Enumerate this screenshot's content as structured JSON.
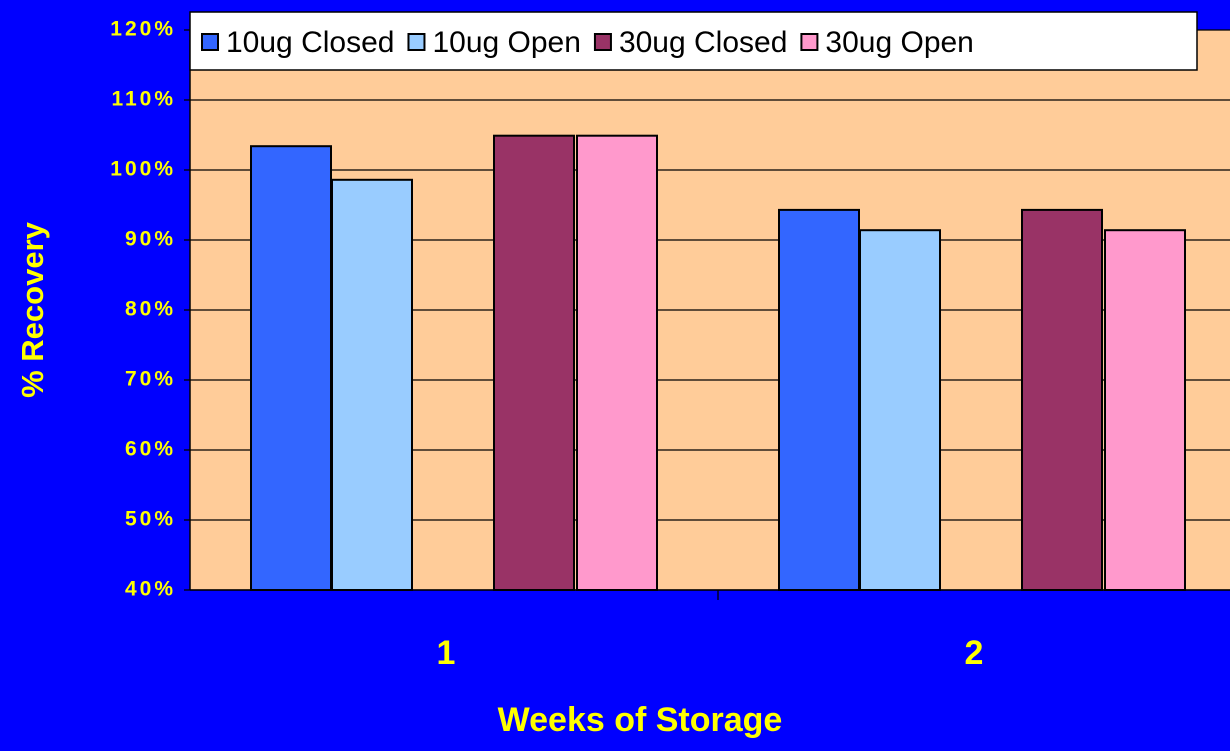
{
  "chart_data": {
    "type": "bar",
    "x_label": "Weeks of Storage",
    "y_label": "% Recovery",
    "categories": [
      "1",
      "2"
    ],
    "series": [
      {
        "name": "10ug Closed",
        "color": "#3366ff",
        "values": [
          103.4,
          94.3
        ]
      },
      {
        "name": "10ug Open",
        "color": "#99ccff",
        "values": [
          98.6,
          91.4
        ]
      },
      {
        "name": "30ug Closed",
        "color": "#993366",
        "values": [
          104.9,
          94.3
        ]
      },
      {
        "name": "30ug Open",
        "color": "#ff99cc",
        "values": [
          104.9,
          91.4
        ]
      }
    ],
    "ylim": [
      40,
      120
    ],
    "yticks": [
      {
        "value": 40,
        "label": "40%"
      },
      {
        "value": 50,
        "label": "50%"
      },
      {
        "value": 60,
        "label": "60%"
      },
      {
        "value": 70,
        "label": "70%"
      },
      {
        "value": 80,
        "label": "80%"
      },
      {
        "value": 90,
        "label": "90%"
      },
      {
        "value": 100,
        "label": "100%"
      },
      {
        "value": 110,
        "label": "110%"
      },
      {
        "value": 120,
        "label": "120%"
      }
    ],
    "grid": true,
    "legend": "top"
  }
}
